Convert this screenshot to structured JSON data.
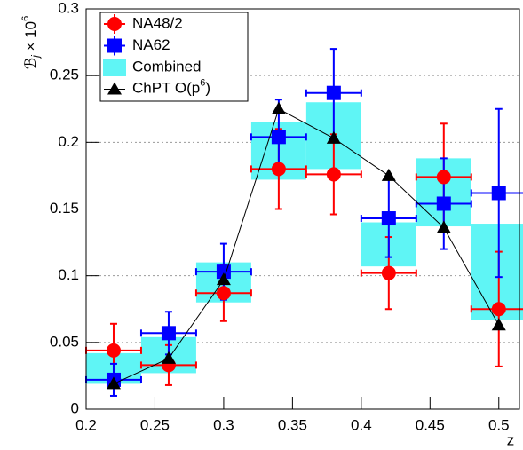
{
  "chart_data": {
    "type": "errorbar",
    "x_label": "z",
    "y_label": {
      "symbol": "ℬ",
      "subscript": "j",
      "middle": " × 10",
      "superscript": "6"
    },
    "xlim": [
      0.2,
      0.515
    ],
    "ylim": [
      0,
      0.3
    ],
    "xticks": [
      0.2,
      0.25,
      0.3,
      0.35,
      0.4,
      0.45,
      0.5
    ],
    "yticks": [
      0,
      0.05,
      0.1,
      0.15,
      0.2,
      0.25,
      0.3
    ],
    "grid": true,
    "legend_position": "top-left",
    "x": [
      0.22,
      0.26,
      0.3,
      0.34,
      0.38,
      0.42,
      0.46,
      0.5
    ],
    "combined": {
      "name": "Combined",
      "color": "#5ff5f5",
      "x_error": 0.02,
      "low": [
        0.019,
        0.027,
        0.08,
        0.172,
        0.18,
        0.107,
        0.137,
        0.067
      ],
      "high": [
        0.042,
        0.054,
        0.11,
        0.215,
        0.23,
        0.14,
        0.188,
        0.139
      ]
    },
    "series": [
      {
        "name": "NA48/2",
        "color": "#ff0000",
        "marker": "circle",
        "x_error": 0.02,
        "values": [
          0.044,
          0.033,
          0.087,
          0.18,
          0.176,
          0.102,
          0.174,
          0.075
        ],
        "errors": [
          0.02,
          0.015,
          0.021,
          0.03,
          0.03,
          0.027,
          0.04,
          0.043
        ]
      },
      {
        "name": "NA62",
        "color": "#0000ff",
        "marker": "square",
        "x_error": 0.02,
        "values": [
          0.022,
          0.057,
          0.103,
          0.204,
          0.237,
          0.143,
          0.154,
          0.162
        ],
        "errors": [
          0.012,
          0.016,
          0.021,
          0.028,
          0.033,
          0.029,
          0.034,
          0.063
        ]
      }
    ],
    "theory": {
      "name": {
        "text": "ChPT O(p",
        "superscript": "6",
        "end": ")"
      },
      "color": "#000000",
      "values": [
        0.019,
        0.038,
        0.097,
        0.225,
        0.203,
        0.175,
        0.136,
        0.063
      ]
    }
  }
}
